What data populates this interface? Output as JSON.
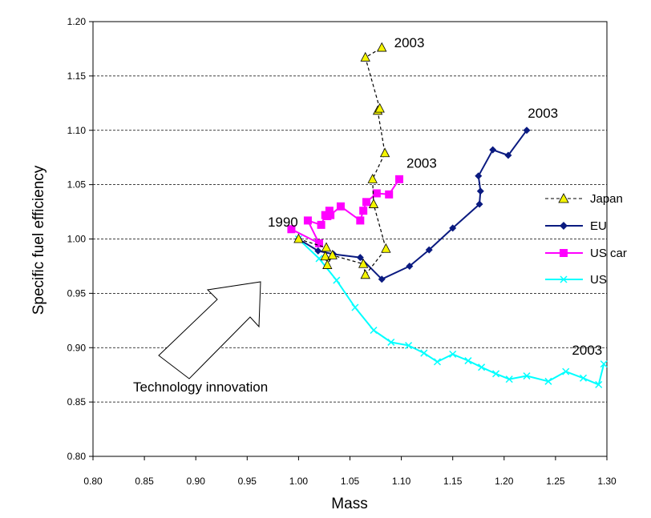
{
  "chart_data": {
    "type": "line",
    "xlabel": "Mass",
    "ylabel": "Specific fuel efficiency",
    "xlim": [
      0.8,
      1.3
    ],
    "ylim": [
      0.8,
      1.2
    ],
    "x_ticks": [
      "0.80",
      "0.85",
      "0.90",
      "0.95",
      "1.00",
      "1.05",
      "1.10",
      "1.15",
      "1.20",
      "1.25",
      "1.30"
    ],
    "y_ticks": [
      "0.80",
      "0.85",
      "0.90",
      "0.95",
      "1.00",
      "1.05",
      "1.10",
      "1.15",
      "1.20"
    ],
    "grid": "horizontal",
    "legend_position": "right",
    "series": [
      {
        "name": "Japan",
        "color": "#000000",
        "marker": "triangle",
        "marker_color": "#f5f500",
        "line_style": "dashed",
        "x": [
          1.0,
          1.027,
          1.026,
          1.028,
          1.033,
          1.063,
          1.065,
          1.085,
          1.073,
          1.072,
          1.084,
          1.077,
          1.079,
          1.065,
          1.081
        ],
        "y": [
          1.0,
          0.992,
          0.984,
          0.976,
          0.985,
          0.977,
          0.967,
          0.991,
          1.032,
          1.055,
          1.079,
          1.118,
          1.12,
          1.167,
          1.176
        ]
      },
      {
        "name": "EU",
        "color": "#0a1a80",
        "marker": "diamond",
        "marker_color": "#0a1a80",
        "line_style": "solid",
        "x": [
          1.0,
          1.019,
          1.034,
          1.06,
          1.081,
          1.108,
          1.127,
          1.15,
          1.176,
          1.177,
          1.175,
          1.189,
          1.204,
          1.222
        ],
        "y": [
          1.0,
          0.989,
          0.986,
          0.983,
          0.963,
          0.975,
          0.99,
          1.01,
          1.032,
          1.044,
          1.058,
          1.082,
          1.077,
          1.1
        ]
      },
      {
        "name": "US car",
        "color": "#ff00ff",
        "marker": "square",
        "marker_color": "#ff00ff",
        "line_style": "solid",
        "x": [
          0.993,
          1.02,
          1.009,
          1.022,
          1.026,
          1.03,
          1.028,
          1.031,
          1.041,
          1.06,
          1.063,
          1.066,
          1.076,
          1.088,
          1.098
        ],
        "y": [
          1.009,
          0.996,
          1.017,
          1.013,
          1.022,
          1.026,
          1.021,
          1.022,
          1.03,
          1.017,
          1.026,
          1.034,
          1.042,
          1.041,
          1.055
        ]
      },
      {
        "name": "US",
        "color": "#00ffff",
        "marker": "x",
        "marker_color": "#00ffff",
        "line_style": "solid",
        "x": [
          1.0,
          1.02,
          1.037,
          1.055,
          1.073,
          1.09,
          1.107,
          1.122,
          1.135,
          1.15,
          1.165,
          1.178,
          1.192,
          1.205,
          1.222,
          1.243,
          1.26,
          1.277,
          1.292,
          1.297
        ],
        "y": [
          1.0,
          0.982,
          0.962,
          0.937,
          0.916,
          0.905,
          0.902,
          0.895,
          0.887,
          0.894,
          0.888,
          0.882,
          0.876,
          0.871,
          0.874,
          0.869,
          0.878,
          0.872,
          0.866,
          0.885
        ]
      }
    ],
    "annotations": [
      {
        "text": "2003",
        "x": 1.093,
        "y": 1.1765,
        "anchor": "start"
      },
      {
        "text": "2003",
        "x": 1.223,
        "y": 1.1115,
        "anchor": "start"
      },
      {
        "text": "2003",
        "x": 1.105,
        "y": 1.0655,
        "anchor": "start"
      },
      {
        "text": "2003",
        "x": 1.266,
        "y": 0.8935,
        "anchor": "start"
      },
      {
        "text": "1990",
        "x": 0.97,
        "y": 1.0115,
        "anchor": "start"
      },
      {
        "text": "Technology innovation",
        "x": 0.839,
        "y": 0.8595,
        "anchor": "start"
      }
    ]
  }
}
